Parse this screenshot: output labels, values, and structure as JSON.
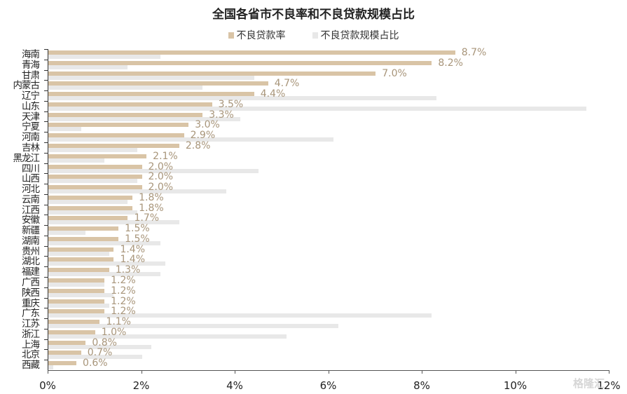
{
  "chart_data": {
    "type": "bar",
    "orientation": "horizontal",
    "title": "全国各省市不良率和不良贷款规模占比",
    "xlabel": "",
    "ylabel": "",
    "xlim": [
      0,
      12
    ],
    "x_ticks": [
      "0%",
      "2%",
      "4%",
      "6%",
      "8%",
      "10%",
      "12%"
    ],
    "legend_position": "top",
    "grid": false,
    "categories": [
      "海南",
      "青海",
      "甘肃",
      "内蒙古",
      "辽宁",
      "山东",
      "天津",
      "宁夏",
      "河南",
      "吉林",
      "黑龙江",
      "四川",
      "山西",
      "河北",
      "云南",
      "江西",
      "安徽",
      "新疆",
      "湖南",
      "贵州",
      "湖北",
      "福建",
      "广西",
      "陕西",
      "重庆",
      "广东",
      "江苏",
      "浙江",
      "上海",
      "北京",
      "西藏"
    ],
    "series": [
      {
        "name": "不良贷款率",
        "color": "#d9c4a6",
        "values": [
          8.7,
          8.2,
          7.0,
          4.7,
          4.4,
          3.5,
          3.3,
          3.0,
          2.9,
          2.8,
          2.1,
          2.0,
          2.0,
          2.0,
          1.8,
          1.8,
          1.7,
          1.5,
          1.5,
          1.4,
          1.4,
          1.3,
          1.2,
          1.2,
          1.2,
          1.2,
          1.1,
          1.0,
          0.8,
          0.7,
          0.6
        ],
        "labels": [
          "8.7%",
          "8.2%",
          "7.0%",
          "4.7%",
          "4.4%",
          "3.5%",
          "3.3%",
          "3.0%",
          "2.9%",
          "2.8%",
          "2.1%",
          "2.0%",
          "2.0%",
          "2.0%",
          "1.8%",
          "1.8%",
          "1.7%",
          "1.5%",
          "1.5%",
          "1.4%",
          "1.4%",
          "1.3%",
          "1.2%",
          "1.2%",
          "1.2%",
          "1.2%",
          "1.1%",
          "1.0%",
          "0.8%",
          "0.7%",
          "0.6%"
        ]
      },
      {
        "name": "不良贷款规模占比",
        "color": "#e8e8e8",
        "values": [
          2.4,
          1.7,
          4.4,
          3.3,
          8.3,
          11.5,
          4.1,
          0.7,
          6.1,
          1.9,
          1.2,
          4.5,
          1.9,
          3.8,
          1.7,
          1.9,
          2.8,
          0.8,
          2.4,
          1.3,
          2.5,
          2.4,
          1.2,
          1.4,
          1.3,
          8.2,
          6.2,
          5.1,
          2.2,
          2.0,
          0.1
        ]
      }
    ]
  },
  "legend": {
    "items": [
      {
        "label": "不良贷款率",
        "color": "#d9c4a6"
      },
      {
        "label": "不良贷款规模占比",
        "color": "#e8e8e8"
      }
    ]
  },
  "watermark": "格隆汇"
}
